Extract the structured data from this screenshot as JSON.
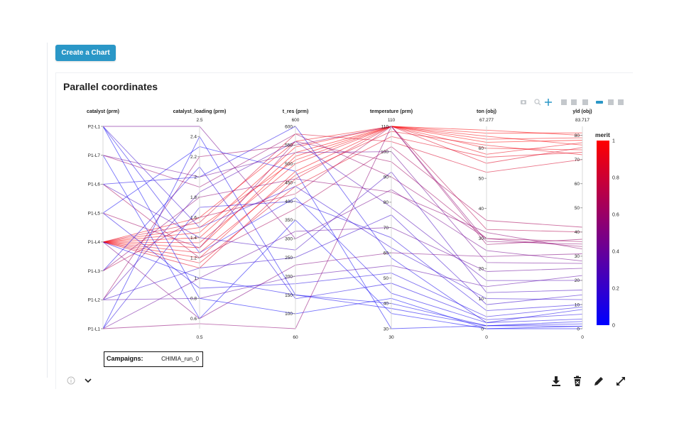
{
  "create_button_label": "Create a Chart",
  "card_title": "Parallel coordinates",
  "campaigns": {
    "label": "Campaigns:",
    "value": "CHIMIA_run_0"
  },
  "toolbar_icons": [
    "camera-icon",
    "zoom-icon",
    "pan-icon",
    "zoom-in-icon",
    "zoom-out-icon",
    "autoscale-icon",
    "hover-closest-icon",
    "hover-compare-icon",
    "spike-lines-icon"
  ],
  "footer_icons": [
    "info-icon",
    "chevron-down-icon",
    "download-icon",
    "delete-icon",
    "edit-icon",
    "expand-icon"
  ],
  "chart_data": {
    "type": "parallel_coordinates",
    "colorbar": {
      "title": "merit",
      "ticks": [
        "1",
        "0.8",
        "0.6",
        "0.4",
        "0.2",
        "0"
      ],
      "low_color": "#0000ff",
      "high_color": "#ff0000"
    },
    "axes": [
      {
        "label": "catalyst (prm)",
        "categorical": true,
        "ticks": [
          "P2-L1",
          "P1-L7",
          "P1-L6",
          "P1-L5",
          "P1-L4",
          "P1-L3",
          "P1-L2",
          "P1-L1"
        ],
        "top_label": "",
        "bottom_label": ""
      },
      {
        "label": "catalyst_loading (prm)",
        "range": [
          0.5,
          2.5
        ],
        "top_label": "2.5",
        "bottom_label": "0.5",
        "ticks": [
          "2.4",
          "2.2",
          "2",
          "1.8",
          "1.6",
          "1.4",
          "1.2",
          "1",
          "0.8",
          "0.6"
        ]
      },
      {
        "label": "t_res (prm)",
        "range": [
          60,
          600
        ],
        "top_label": "600",
        "bottom_label": "60",
        "ticks": [
          "600",
          "550",
          "500",
          "450",
          "400",
          "350",
          "300",
          "250",
          "200",
          "150",
          "100"
        ]
      },
      {
        "label": "temperature (prm)",
        "range": [
          30,
          110
        ],
        "top_label": "110",
        "bottom_label": "30",
        "ticks": [
          "110",
          "100",
          "90",
          "80",
          "70",
          "60",
          "50",
          "40",
          "30"
        ]
      },
      {
        "label": "ton (obj)",
        "range": [
          0,
          67.277
        ],
        "top_label": "67.277",
        "bottom_label": "0",
        "ticks": [
          "60",
          "50",
          "40",
          "30",
          "20",
          "10",
          "0"
        ]
      },
      {
        "label": "yld (obj)",
        "range": [
          0,
          83.717
        ],
        "top_label": "83.717",
        "bottom_label": "0",
        "ticks": [
          "80",
          "70",
          "60",
          "50",
          "40",
          "30",
          "20",
          "10",
          "0"
        ]
      }
    ],
    "lines": [
      {
        "catalyst": "P1-L4",
        "catalyst_loading": 1.3,
        "t_res": 520,
        "temperature": 110,
        "ton": 62,
        "yld": 78,
        "merit": 1.0
      },
      {
        "catalyst": "P1-L4",
        "catalyst_loading": 1.4,
        "t_res": 530,
        "temperature": 110,
        "ton": 66,
        "yld": 80,
        "merit": 0.98
      },
      {
        "catalyst": "P1-L4",
        "catalyst_loading": 1.5,
        "t_res": 510,
        "temperature": 110,
        "ton": 64,
        "yld": 76,
        "merit": 0.97
      },
      {
        "catalyst": "P1-L4",
        "catalyst_loading": 1.2,
        "t_res": 480,
        "temperature": 110,
        "ton": 60,
        "yld": 74,
        "merit": 0.95
      },
      {
        "catalyst": "P1-L4",
        "catalyst_loading": 1.6,
        "t_res": 560,
        "temperature": 110,
        "ton": 63,
        "yld": 79,
        "merit": 0.96
      },
      {
        "catalyst": "P1-L4",
        "catalyst_loading": 1.25,
        "t_res": 470,
        "temperature": 108,
        "ton": 61,
        "yld": 72,
        "merit": 0.92
      },
      {
        "catalyst": "P1-L4",
        "catalyst_loading": 1.35,
        "t_res": 500,
        "temperature": 110,
        "ton": 58,
        "yld": 77,
        "merit": 0.93
      },
      {
        "catalyst": "P1-L4",
        "catalyst_loading": 1.15,
        "t_res": 440,
        "temperature": 106,
        "ton": 57,
        "yld": 73,
        "merit": 0.9
      },
      {
        "catalyst": "P1-L4",
        "catalyst_loading": 1.45,
        "t_res": 545,
        "temperature": 110,
        "ton": 65,
        "yld": 81,
        "merit": 0.99
      },
      {
        "catalyst": "P1-L4",
        "catalyst_loading": 1.1,
        "t_res": 460,
        "temperature": 110,
        "ton": 55,
        "yld": 75,
        "merit": 0.88
      },
      {
        "catalyst": "P1-L4",
        "catalyst_loading": 1.55,
        "t_res": 580,
        "temperature": 104,
        "ton": 52,
        "yld": 70,
        "merit": 0.85
      },
      {
        "catalyst": "P1-L3",
        "catalyst_loading": 1.6,
        "t_res": 420,
        "temperature": 110,
        "ton": 33,
        "yld": 40,
        "merit": 0.7
      },
      {
        "catalyst": "P1-L5",
        "catalyst_loading": 1.3,
        "t_res": 560,
        "temperature": 96,
        "ton": 30,
        "yld": 36,
        "merit": 0.62
      },
      {
        "catalyst": "P1-L7",
        "catalyst_loading": 1.9,
        "t_res": 580,
        "temperature": 90,
        "ton": 30,
        "yld": 34,
        "merit": 0.58
      },
      {
        "catalyst": "P1-L6",
        "catalyst_loading": 1.2,
        "t_res": 380,
        "temperature": 102,
        "ton": 36,
        "yld": 42,
        "merit": 0.66
      },
      {
        "catalyst": "P1-L2",
        "catalyst_loading": 2.2,
        "t_res": 550,
        "temperature": 110,
        "ton": 28,
        "yld": 37,
        "merit": 0.6
      },
      {
        "catalyst": "P2-L1",
        "catalyst_loading": 2.5,
        "t_res": 300,
        "temperature": 85,
        "ton": 26,
        "yld": 28,
        "merit": 0.45
      },
      {
        "catalyst": "P1-L4",
        "catalyst_loading": 0.6,
        "t_res": 230,
        "temperature": 60,
        "ton": 24,
        "yld": 31,
        "merit": 0.5
      },
      {
        "catalyst": "P1-L1",
        "catalyst_loading": 1.0,
        "t_res": 320,
        "temperature": 70,
        "ton": 19,
        "yld": 25,
        "merit": 0.4
      },
      {
        "catalyst": "P1-L3",
        "catalyst_loading": 1.8,
        "t_res": 460,
        "temperature": 84,
        "ton": 32,
        "yld": 33,
        "merit": 0.55
      },
      {
        "catalyst": "P1-L2",
        "catalyst_loading": 0.8,
        "t_res": 200,
        "temperature": 55,
        "ton": 14,
        "yld": 22,
        "merit": 0.35
      },
      {
        "catalyst": "P1-L1",
        "catalyst_loading": 2.4,
        "t_res": 150,
        "temperature": 40,
        "ton": 1,
        "yld": 2,
        "merit": 0.05
      },
      {
        "catalyst": "P2-L1",
        "catalyst_loading": 0.8,
        "t_res": 100,
        "temperature": 42,
        "ton": 0,
        "yld": 1,
        "merit": 0.02
      },
      {
        "catalyst": "P1-L6",
        "catalyst_loading": 2.0,
        "t_res": 600,
        "temperature": 58,
        "ton": 2,
        "yld": 4,
        "merit": 0.08
      },
      {
        "catalyst": "P1-L7",
        "catalyst_loading": 0.6,
        "t_res": 350,
        "temperature": 36,
        "ton": 0,
        "yld": 0,
        "merit": 0.03
      },
      {
        "catalyst": "P1-L5",
        "catalyst_loading": 2.3,
        "t_res": 480,
        "temperature": 30,
        "ton": 1,
        "yld": 3,
        "merit": 0.04
      },
      {
        "catalyst": "P1-L1",
        "catalyst_loading": 1.7,
        "t_res": 400,
        "temperature": 66,
        "ton": 6,
        "yld": 10,
        "merit": 0.12
      },
      {
        "catalyst": "P1-L2",
        "catalyst_loading": 1.1,
        "t_res": 250,
        "temperature": 75,
        "ton": 8,
        "yld": 14,
        "merit": 0.2
      },
      {
        "catalyst": "P1-L3",
        "catalyst_loading": 2.1,
        "t_res": 140,
        "temperature": 48,
        "ton": 3,
        "yld": 6,
        "merit": 0.1
      },
      {
        "catalyst": "P1-L6",
        "catalyst_loading": 1.4,
        "t_res": 270,
        "temperature": 92,
        "ton": 12,
        "yld": 16,
        "merit": 0.25
      },
      {
        "catalyst": "P2-L1",
        "catalyst_loading": 1.5,
        "t_res": 440,
        "temperature": 62,
        "ton": 10,
        "yld": 12,
        "merit": 0.18
      },
      {
        "catalyst": "P1-L7",
        "catalyst_loading": 2.0,
        "t_res": 530,
        "temperature": 100,
        "ton": 22,
        "yld": 27,
        "merit": 0.42
      },
      {
        "catalyst": "P1-L5",
        "catalyst_loading": 0.9,
        "t_res": 180,
        "temperature": 52,
        "ton": 4,
        "yld": 9,
        "merit": 0.1
      },
      {
        "catalyst": "P1-L4",
        "catalyst_loading": 1.0,
        "t_res": 150,
        "temperature": 38,
        "ton": 1,
        "yld": 1,
        "merit": 0.06
      },
      {
        "catalyst": "P1-L2",
        "catalyst_loading": 1.85,
        "t_res": 560,
        "temperature": 78,
        "ton": 16,
        "yld": 20,
        "merit": 0.3
      },
      {
        "catalyst": "P1-L1",
        "catalyst_loading": 0.55,
        "t_res": 60,
        "temperature": 110,
        "ton": 29,
        "yld": 35,
        "merit": 0.55
      },
      {
        "catalyst": "P2-L1",
        "catalyst_loading": 1.25,
        "t_res": 410,
        "temperature": 44,
        "ton": 2,
        "yld": 8,
        "merit": 0.07
      }
    ]
  }
}
